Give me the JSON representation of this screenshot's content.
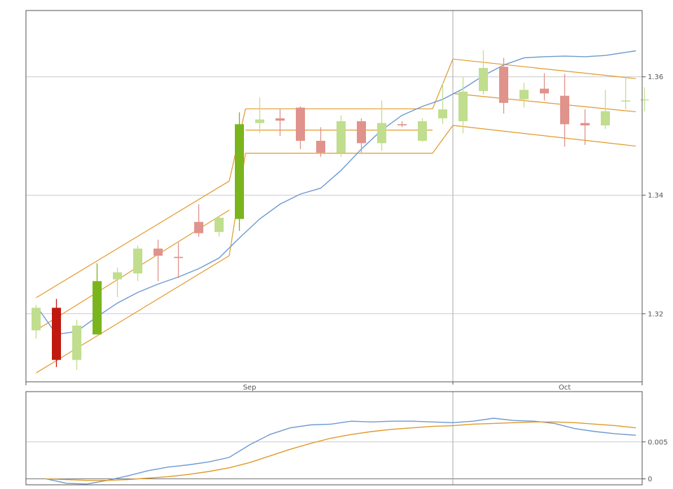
{
  "chart_data": [
    {
      "type": "candlestick",
      "panel": "price",
      "ylim": [
        1.3085,
        1.3712
      ],
      "x_count": 31,
      "grid": true,
      "xaxis_labels": [
        {
          "label": "Sep",
          "index": 10.5
        },
        {
          "label": "Oct",
          "index": 26
        }
      ],
      "yaxis_ticks": [
        {
          "label": "1.32",
          "value": 1.32
        },
        {
          "label": "1.34",
          "value": 1.34
        },
        {
          "label": "1.36",
          "value": 1.36
        }
      ],
      "candles": [
        {
          "o": 1.3172,
          "h": 1.3215,
          "l": 1.3158,
          "c": 1.321
        },
        {
          "o": 1.321,
          "h": 1.3225,
          "l": 1.311,
          "c": 1.3122
        },
        {
          "o": 1.3122,
          "h": 1.319,
          "l": 1.3105,
          "c": 1.318
        },
        {
          "o": 1.3165,
          "h": 1.3285,
          "l": 1.3165,
          "c": 1.3255
        },
        {
          "o": 1.3258,
          "h": 1.3278,
          "l": 1.3228,
          "c": 1.327
        },
        {
          "o": 1.3268,
          "h": 1.3315,
          "l": 1.3255,
          "c": 1.331
        },
        {
          "o": 1.331,
          "h": 1.3325,
          "l": 1.3255,
          "c": 1.3298
        },
        {
          "o": 1.3296,
          "h": 1.332,
          "l": 1.326,
          "c": 1.3294
        },
        {
          "o": 1.3355,
          "h": 1.3385,
          "l": 1.333,
          "c": 1.3336
        },
        {
          "o": 1.3338,
          "h": 1.3365,
          "l": 1.333,
          "c": 1.3362
        },
        {
          "o": 1.336,
          "h": 1.354,
          "l": 1.334,
          "c": 1.352
        },
        {
          "o": 1.3522,
          "h": 1.3565,
          "l": 1.3505,
          "c": 1.3528
        },
        {
          "o": 1.353,
          "h": 1.3545,
          "l": 1.35,
          "c": 1.3526
        },
        {
          "o": 1.3548,
          "h": 1.355,
          "l": 1.3478,
          "c": 1.3492
        },
        {
          "o": 1.3492,
          "h": 1.3515,
          "l": 1.3465,
          "c": 1.3472
        },
        {
          "o": 1.3472,
          "h": 1.3535,
          "l": 1.3465,
          "c": 1.3525
        },
        {
          "o": 1.3525,
          "h": 1.353,
          "l": 1.3472,
          "c": 1.3488
        },
        {
          "o": 1.3488,
          "h": 1.356,
          "l": 1.3475,
          "c": 1.3522
        },
        {
          "o": 1.352,
          "h": 1.3525,
          "l": 1.3515,
          "c": 1.3518
        },
        {
          "o": 1.3492,
          "h": 1.353,
          "l": 1.349,
          "c": 1.3525
        },
        {
          "o": 1.353,
          "h": 1.359,
          "l": 1.352,
          "c": 1.3545
        },
        {
          "o": 1.3525,
          "h": 1.36,
          "l": 1.3505,
          "c": 1.3575
        },
        {
          "o": 1.3576,
          "h": 1.3645,
          "l": 1.357,
          "c": 1.3615
        },
        {
          "o": 1.3617,
          "h": 1.3632,
          "l": 1.3538,
          "c": 1.3556
        },
        {
          "o": 1.3562,
          "h": 1.359,
          "l": 1.3548,
          "c": 1.3578
        },
        {
          "o": 1.358,
          "h": 1.3606,
          "l": 1.356,
          "c": 1.3572
        },
        {
          "o": 1.3568,
          "h": 1.3605,
          "l": 1.3482,
          "c": 1.352
        },
        {
          "o": 1.3522,
          "h": 1.3545,
          "l": 1.3485,
          "c": 1.3518
        },
        {
          "o": 1.3518,
          "h": 1.3578,
          "l": 1.3512,
          "c": 1.3542
        },
        {
          "o": 1.356,
          "h": 1.36,
          "l": 1.3545,
          "c": 1.356
        }
      ],
      "strong_bars": [
        1,
        3,
        10
      ],
      "colors": {
        "up": "#c0de8e",
        "down": "#e0938b",
        "up_strong": "#7ab51d",
        "down_strong": "#c01a10",
        "channel": "#e19a2b",
        "trend": "#6f9ad1",
        "grid": "#cccccc",
        "cursor": "#aaaaaa",
        "frame": "#555555"
      },
      "channels": [
        {
          "name": "",
          "upper": [
            [
              0,
              1.3227
            ],
            [
              9.5,
              1.3424
            ]
          ],
          "middle": [
            [
              0,
              1.3172
            ],
            [
              9.5,
              1.3375
            ]
          ],
          "lower": [
            [
              0,
              1.31
            ],
            [
              9.5,
              1.3298
            ]
          ]
        },
        {
          "name": "",
          "upper": [
            [
              10.3,
              1.3546
            ],
            [
              19.5,
              1.3546
            ]
          ],
          "middle": [
            [
              10.3,
              1.351
            ],
            [
              19.5,
              1.351
            ]
          ],
          "lower": [
            [
              10.3,
              1.3471
            ],
            [
              19.5,
              1.3471
            ]
          ]
        },
        {
          "name": "",
          "upper": [
            [
              20.5,
              1.363
            ],
            [
              29.5,
              1.3597
            ]
          ],
          "middle": [
            [
              20.5,
              1.3572
            ],
            [
              29.5,
              1.3541
            ]
          ],
          "lower": [
            [
              20.5,
              1.3518
            ],
            [
              29.5,
              1.3483
            ]
          ]
        }
      ],
      "channel_joins": [
        [
          [
            9.5,
            1.3424
          ],
          [
            10.3,
            1.3546
          ]
        ],
        [
          [
            9.5,
            1.3298
          ],
          [
            10.3,
            1.3471
          ]
        ],
        [
          [
            19.5,
            1.3546
          ],
          [
            20.5,
            1.363
          ]
        ],
        [
          [
            19.5,
            1.3471
          ],
          [
            20.5,
            1.3518
          ]
        ]
      ],
      "trend_line": [
        [
          0.2,
          1.3204
        ],
        [
          1,
          1.3165
        ],
        [
          2,
          1.317
        ],
        [
          3,
          1.3195
        ],
        [
          4,
          1.3218
        ],
        [
          5,
          1.3236
        ],
        [
          6,
          1.325
        ],
        [
          7,
          1.3262
        ],
        [
          8,
          1.3276
        ],
        [
          9,
          1.3294
        ],
        [
          10,
          1.3328
        ],
        [
          11,
          1.336
        ],
        [
          12,
          1.3385
        ],
        [
          13,
          1.3402
        ],
        [
          14,
          1.3412
        ],
        [
          15,
          1.3442
        ],
        [
          16,
          1.3478
        ],
        [
          17,
          1.351
        ],
        [
          18,
          1.3535
        ],
        [
          19,
          1.355
        ],
        [
          20,
          1.3562
        ],
        [
          21,
          1.358
        ],
        [
          22,
          1.3602
        ],
        [
          23,
          1.362
        ],
        [
          24,
          1.3632
        ],
        [
          25,
          1.3634
        ],
        [
          26,
          1.3635
        ],
        [
          27,
          1.3634
        ],
        [
          28,
          1.3636
        ],
        [
          29.5,
          1.3644
        ]
      ],
      "last_price_tick": {
        "x": 30,
        "value": 1.3561
      },
      "cursor_index": 20.5
    },
    {
      "type": "line",
      "panel": "indicator",
      "ylim": [
        -0.0008,
        0.0118
      ],
      "yaxis_ticks": [
        {
          "label": "0.005",
          "value": 0.005
        },
        {
          "label": "0",
          "value": 0
        }
      ],
      "series": [
        {
          "name": "",
          "color": "#6f9ad1",
          "points": [
            [
              0.5,
              0.0
            ],
            [
              1.5,
              -0.0006
            ],
            [
              2.5,
              -0.0007
            ],
            [
              3.5,
              -0.0002
            ],
            [
              4.5,
              0.0004
            ],
            [
              5.5,
              0.0011
            ],
            [
              6.5,
              0.0016
            ],
            [
              7.5,
              0.0019
            ],
            [
              8.5,
              0.0023
            ],
            [
              9.5,
              0.0029
            ],
            [
              10.5,
              0.0046
            ],
            [
              11.5,
              0.006
            ],
            [
              12.5,
              0.0069
            ],
            [
              13.5,
              0.0073
            ],
            [
              14.5,
              0.0074
            ],
            [
              15.5,
              0.0078
            ],
            [
              16.5,
              0.0077
            ],
            [
              17.5,
              0.0078
            ],
            [
              18.5,
              0.0078
            ],
            [
              19.5,
              0.0077
            ],
            [
              20.5,
              0.0076
            ],
            [
              21.5,
              0.0078
            ],
            [
              22.5,
              0.0082
            ],
            [
              23.5,
              0.0079
            ],
            [
              24.5,
              0.0078
            ],
            [
              25.5,
              0.0075
            ],
            [
              26.5,
              0.0068
            ],
            [
              27.5,
              0.0064
            ],
            [
              28.5,
              0.0061
            ],
            [
              29.5,
              0.0059
            ]
          ]
        },
        {
          "name": "",
          "color": "#e19a2b",
          "points": [
            [
              0.5,
              0.0
            ],
            [
              1.5,
              -0.0001
            ],
            [
              2.5,
              -0.0002
            ],
            [
              3.5,
              -0.0002
            ],
            [
              4.5,
              -0.0001
            ],
            [
              5.5,
              0.0001
            ],
            [
              6.5,
              0.0003
            ],
            [
              7.5,
              0.0006
            ],
            [
              8.5,
              0.001
            ],
            [
              9.5,
              0.0015
            ],
            [
              10.5,
              0.0022
            ],
            [
              11.5,
              0.0031
            ],
            [
              12.5,
              0.004
            ],
            [
              13.5,
              0.0048
            ],
            [
              14.5,
              0.0055
            ],
            [
              15.5,
              0.006
            ],
            [
              16.5,
              0.0064
            ],
            [
              17.5,
              0.0067
            ],
            [
              18.5,
              0.0069
            ],
            [
              19.5,
              0.0071
            ],
            [
              20.5,
              0.0072
            ],
            [
              21.5,
              0.0074
            ],
            [
              22.5,
              0.0075
            ],
            [
              23.5,
              0.0076
            ],
            [
              24.5,
              0.0077
            ],
            [
              25.5,
              0.0077
            ],
            [
              26.5,
              0.0076
            ],
            [
              27.5,
              0.0074
            ],
            [
              28.5,
              0.0072
            ],
            [
              29.5,
              0.0069
            ]
          ]
        }
      ],
      "cursor_index": 20.5
    }
  ]
}
